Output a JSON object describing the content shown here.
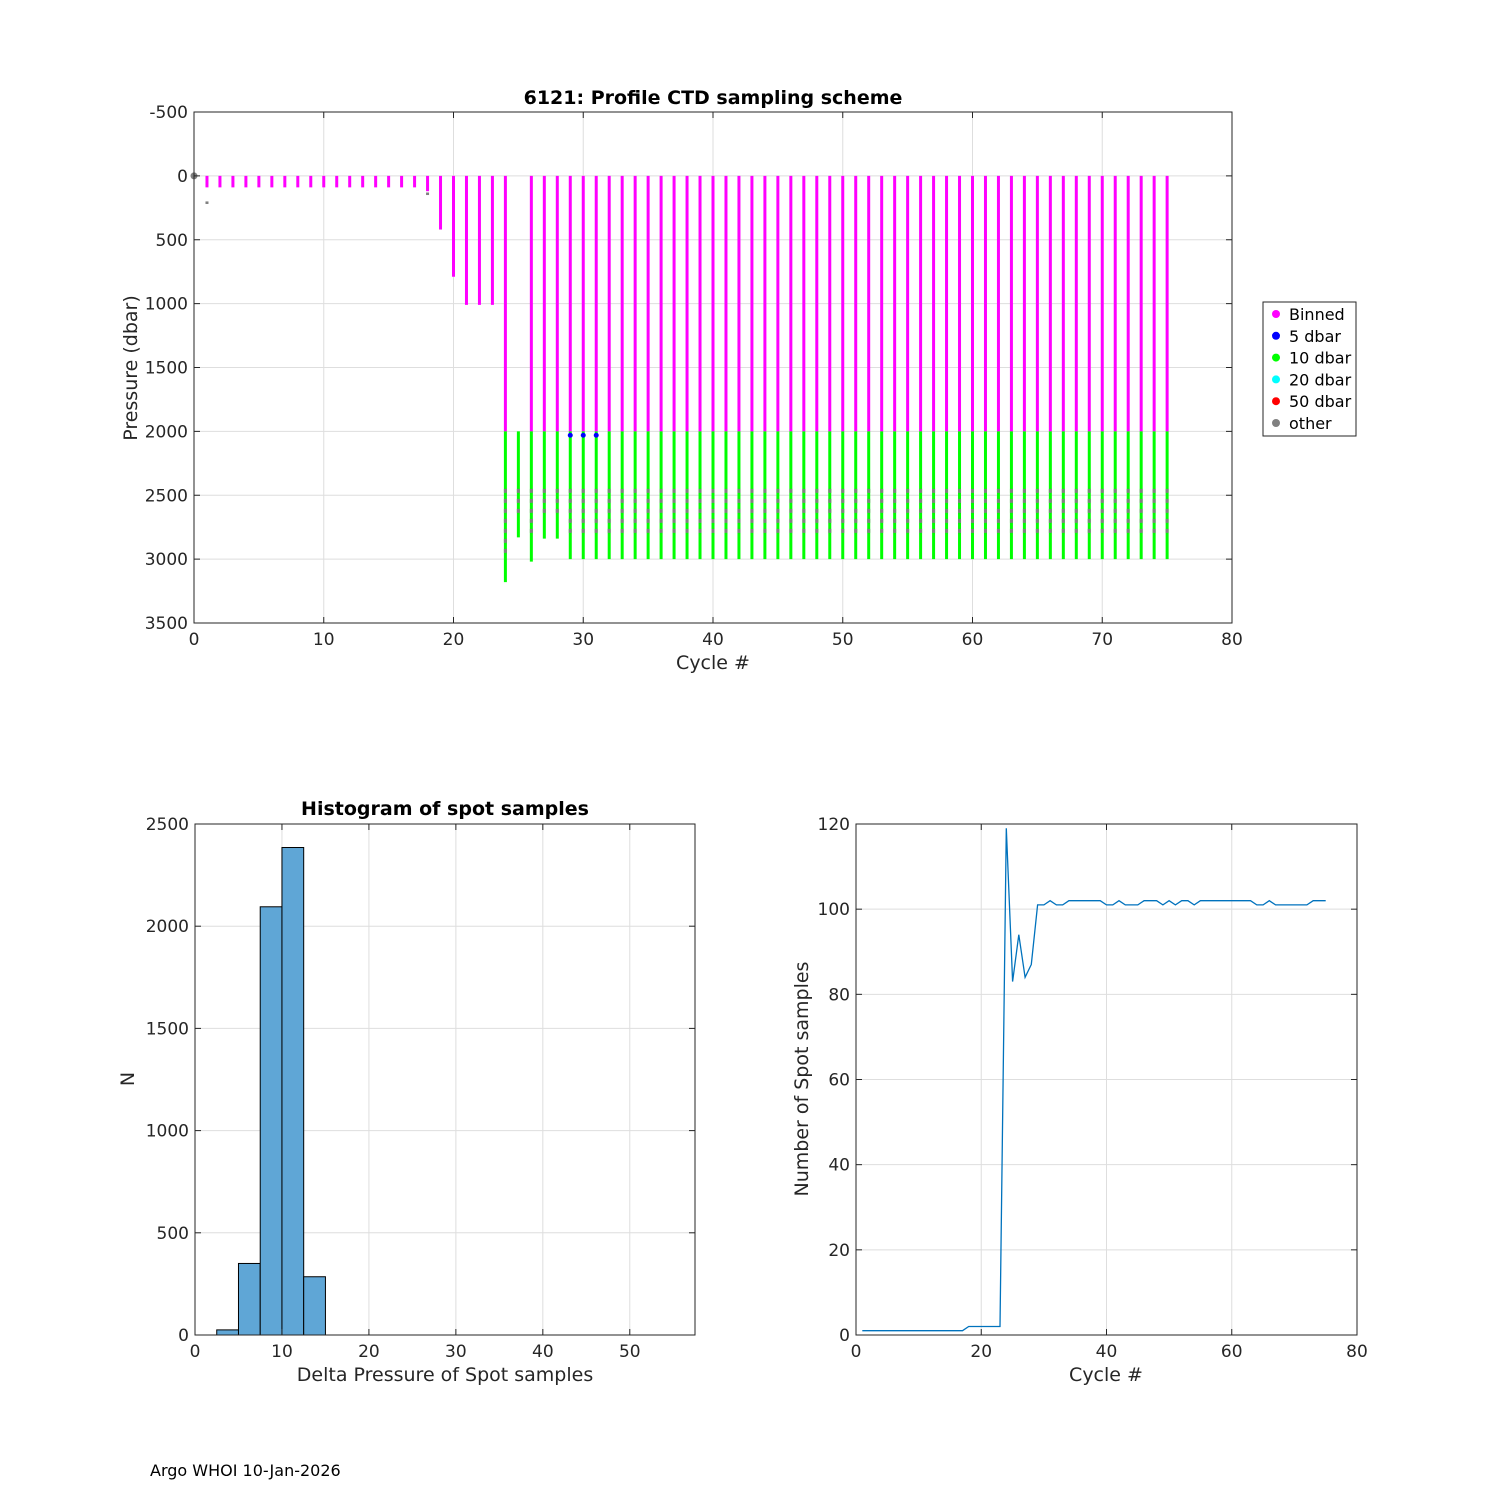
{
  "footer": "Argo WHOI 10-Jan-2026",
  "chart_data": [
    {
      "type": "scatter",
      "title": "6121: Profile CTD sampling scheme",
      "xlabel": "Cycle #",
      "ylabel": "Pressure (dbar)",
      "xlim": [
        0,
        80
      ],
      "ylim": [
        -500,
        3500
      ],
      "y_reversed": true,
      "xticks": [
        0,
        10,
        20,
        30,
        40,
        50,
        60,
        70,
        80
      ],
      "yticks": [
        -500,
        0,
        500,
        1000,
        1500,
        2000,
        2500,
        3000,
        3500
      ],
      "grid": true,
      "legend_position": "outside-right",
      "legend": [
        {
          "label": "Binned",
          "color": "#ff00ff"
        },
        {
          "label": "5 dbar",
          "color": "#0000ff"
        },
        {
          "label": "10 dbar",
          "color": "#00ff00"
        },
        {
          "label": "20 dbar",
          "color": "#00ffff"
        },
        {
          "label": "50 dbar",
          "color": "#ff0000"
        },
        {
          "label": "other",
          "color": "#808080"
        }
      ],
      "profiles": [
        {
          "cycle": 1,
          "binned_max": 90,
          "spot_max": 220
        },
        {
          "cycle": 2,
          "binned_max": 90
        },
        {
          "cycle": 3,
          "binned_max": 90
        },
        {
          "cycle": 4,
          "binned_max": 90
        },
        {
          "cycle": 5,
          "binned_max": 90
        },
        {
          "cycle": 6,
          "binned_max": 90
        },
        {
          "cycle": 7,
          "binned_max": 90
        },
        {
          "cycle": 8,
          "binned_max": 90
        },
        {
          "cycle": 9,
          "binned_max": 90
        },
        {
          "cycle": 10,
          "binned_max": 90
        },
        {
          "cycle": 11,
          "binned_max": 90
        },
        {
          "cycle": 12,
          "binned_max": 90
        },
        {
          "cycle": 13,
          "binned_max": 90
        },
        {
          "cycle": 14,
          "binned_max": 90
        },
        {
          "cycle": 15,
          "binned_max": 90
        },
        {
          "cycle": 16,
          "binned_max": 90
        },
        {
          "cycle": 17,
          "binned_max": 90
        },
        {
          "cycle": 18,
          "binned_max": 120,
          "spot_max": 150
        },
        {
          "cycle": 19,
          "binned_max": 420
        },
        {
          "cycle": 20,
          "binned_max": 790
        },
        {
          "cycle": 21,
          "binned_max": 1010
        },
        {
          "cycle": 22,
          "binned_max": 1010
        },
        {
          "cycle": 23,
          "binned_max": 1010
        },
        {
          "cycle": 24,
          "binned_max": 2000,
          "spot_max": 3180
        },
        {
          "cycle": 25,
          "spot_min": 2000,
          "spot_max": 2830
        },
        {
          "cycle": 26,
          "binned_max": 2000,
          "spot_max": 3020
        },
        {
          "cycle": 27,
          "binned_max": 2000,
          "spot_max": 2840
        },
        {
          "cycle": 28,
          "binned_max": 2000,
          "spot_max": 2840
        },
        {
          "cycle": 29,
          "binned_max": 2000,
          "spot_max": 3000
        },
        {
          "cycle": 30,
          "binned_max": 2000,
          "spot_max": 3000
        },
        {
          "cycle": 31,
          "binned_max": 2000,
          "spot_max": 3000
        },
        {
          "cycle": 32,
          "binned_max": 2000,
          "spot_max": 3000
        },
        {
          "cycle": 33,
          "binned_max": 2000,
          "spot_max": 3000
        },
        {
          "cycle": 34,
          "binned_max": 2000,
          "spot_max": 3000
        },
        {
          "cycle": 35,
          "binned_max": 2000,
          "spot_max": 3000
        },
        {
          "cycle": 36,
          "binned_max": 2000,
          "spot_max": 3000
        },
        {
          "cycle": 37,
          "binned_max": 2000,
          "spot_max": 3000
        },
        {
          "cycle": 38,
          "binned_max": 2000,
          "spot_max": 3000
        },
        {
          "cycle": 39,
          "binned_max": 2000,
          "spot_max": 3000
        },
        {
          "cycle": 40,
          "binned_max": 2000,
          "spot_max": 3000
        },
        {
          "cycle": 41,
          "binned_max": 2000,
          "spot_max": 3000
        },
        {
          "cycle": 42,
          "binned_max": 2000,
          "spot_max": 3000
        },
        {
          "cycle": 43,
          "binned_max": 2000,
          "spot_max": 3000
        },
        {
          "cycle": 44,
          "binned_max": 2000,
          "spot_max": 3000
        },
        {
          "cycle": 45,
          "binned_max": 2000,
          "spot_max": 3000
        },
        {
          "cycle": 46,
          "binned_max": 2000,
          "spot_max": 3000
        },
        {
          "cycle": 47,
          "binned_max": 2000,
          "spot_max": 3000
        },
        {
          "cycle": 48,
          "binned_max": 2000,
          "spot_max": 3000
        },
        {
          "cycle": 49,
          "binned_max": 2000,
          "spot_max": 3000
        },
        {
          "cycle": 50,
          "binned_max": 2000,
          "spot_max": 3000
        },
        {
          "cycle": 51,
          "binned_max": 2000,
          "spot_max": 3000
        },
        {
          "cycle": 52,
          "binned_max": 2000,
          "spot_max": 3000
        },
        {
          "cycle": 53,
          "binned_max": 2000,
          "spot_max": 3000
        },
        {
          "cycle": 54,
          "binned_max": 2000,
          "spot_max": 3000
        },
        {
          "cycle": 55,
          "binned_max": 2000,
          "spot_max": 3000
        },
        {
          "cycle": 56,
          "binned_max": 2000,
          "spot_max": 3000
        },
        {
          "cycle": 57,
          "binned_max": 2000,
          "spot_max": 3000
        },
        {
          "cycle": 58,
          "binned_max": 2000,
          "spot_max": 3000
        },
        {
          "cycle": 59,
          "binned_max": 2000,
          "spot_max": 3000
        },
        {
          "cycle": 60,
          "binned_max": 2000,
          "spot_max": 3000
        },
        {
          "cycle": 61,
          "binned_max": 2000,
          "spot_max": 3000
        },
        {
          "cycle": 62,
          "binned_max": 2000,
          "spot_max": 3000
        },
        {
          "cycle": 63,
          "binned_max": 2000,
          "spot_max": 3000
        },
        {
          "cycle": 64,
          "binned_max": 2000,
          "spot_max": 3000
        },
        {
          "cycle": 65,
          "binned_max": 2000,
          "spot_max": 3000
        },
        {
          "cycle": 66,
          "binned_max": 2000,
          "spot_max": 3000
        },
        {
          "cycle": 67,
          "binned_max": 2000,
          "spot_max": 3000
        },
        {
          "cycle": 68,
          "binned_max": 2000,
          "spot_max": 3000
        },
        {
          "cycle": 69,
          "binned_max": 2000,
          "spot_max": 3000
        },
        {
          "cycle": 70,
          "binned_max": 2000,
          "spot_max": 3000
        },
        {
          "cycle": 71,
          "binned_max": 2000,
          "spot_max": 3000
        },
        {
          "cycle": 72,
          "binned_max": 2000,
          "spot_max": 3000
        },
        {
          "cycle": 73,
          "binned_max": 2000,
          "spot_max": 3000
        },
        {
          "cycle": 74,
          "binned_max": 2000,
          "spot_max": 3000
        },
        {
          "cycle": 75,
          "binned_max": 2000,
          "spot_max": 3000
        }
      ]
    },
    {
      "type": "bar",
      "title": "Histogram of spot samples",
      "xlabel": "Delta Pressure of Spot samples",
      "ylabel": "N",
      "xlim": [
        0,
        57.5
      ],
      "ylim": [
        0,
        2500
      ],
      "xticks": [
        0,
        10,
        20,
        30,
        40,
        50
      ],
      "yticks": [
        0,
        500,
        1000,
        1500,
        2000,
        2500
      ],
      "grid": true,
      "bar_color": "#5fa6d6",
      "bins": [
        {
          "x0": 2.5,
          "x1": 5,
          "value": 25
        },
        {
          "x0": 5,
          "x1": 7.5,
          "value": 350
        },
        {
          "x0": 7.5,
          "x1": 10,
          "value": 2095
        },
        {
          "x0": 10,
          "x1": 12.5,
          "value": 2385
        },
        {
          "x0": 12.5,
          "x1": 15,
          "value": 285
        }
      ]
    },
    {
      "type": "line",
      "title": "",
      "xlabel": "Cycle #",
      "ylabel": "Number of Spot samples",
      "xlim": [
        0,
        80
      ],
      "ylim": [
        0,
        120
      ],
      "xticks": [
        0,
        20,
        40,
        60,
        80
      ],
      "yticks": [
        0,
        20,
        40,
        60,
        80,
        100,
        120
      ],
      "grid": true,
      "line_color": "#0072bd",
      "x": [
        1,
        17,
        18,
        19,
        20,
        21,
        22,
        23,
        24,
        25,
        26,
        27,
        28,
        29,
        30,
        31,
        32,
        33,
        34,
        35,
        36,
        37,
        38,
        39,
        40,
        41,
        42,
        43,
        44,
        45,
        46,
        47,
        48,
        49,
        50,
        51,
        52,
        53,
        54,
        55,
        56,
        57,
        58,
        59,
        60,
        61,
        62,
        63,
        64,
        65,
        66,
        67,
        68,
        69,
        70,
        71,
        72,
        73,
        74,
        75
      ],
      "y": [
        1,
        1,
        2,
        2,
        2,
        2,
        2,
        2,
        119,
        83,
        94,
        84,
        87,
        101,
        101,
        102,
        101,
        101,
        102,
        102,
        102,
        102,
        102,
        102,
        101,
        101,
        102,
        101,
        101,
        101,
        102,
        102,
        102,
        101,
        102,
        101,
        102,
        102,
        101,
        102,
        102,
        102,
        102,
        102,
        102,
        102,
        102,
        102,
        101,
        101,
        102,
        101,
        101,
        101,
        101,
        101,
        101,
        102,
        102,
        102
      ]
    }
  ]
}
